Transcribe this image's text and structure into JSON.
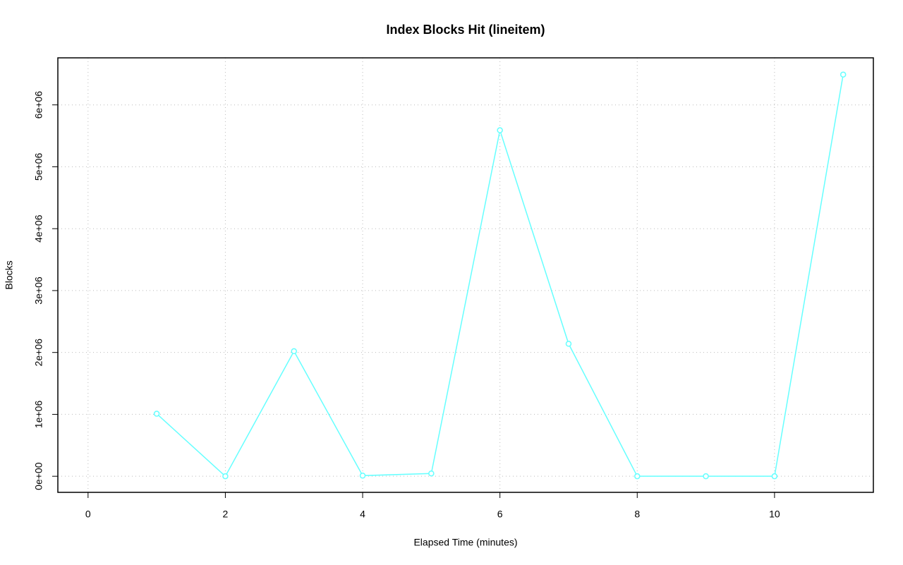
{
  "chart_data": {
    "type": "line",
    "title": "Index Blocks Hit (lineitem)",
    "xlabel": "Elapsed Time (minutes)",
    "ylabel": "Blocks",
    "x": [
      1,
      2,
      3,
      4,
      5,
      6,
      7,
      8,
      9,
      10,
      11
    ],
    "series": [
      {
        "name": "lineitem",
        "color": "#66ffff",
        "values": [
          1010000,
          0,
          2020000,
          10000,
          45000,
          5590000,
          2140000,
          0,
          0,
          0,
          6490000
        ]
      }
    ],
    "xlim": [
      -0.44,
      11.44
    ],
    "xticks": [
      0,
      2,
      4,
      6,
      8,
      10
    ],
    "ylim": [
      -260000,
      6760000
    ],
    "yticks": [
      {
        "value": 0,
        "label": "0e+00"
      },
      {
        "value": 1000000,
        "label": "1e+06"
      },
      {
        "value": 2000000,
        "label": "2e+06"
      },
      {
        "value": 3000000,
        "label": "3e+06"
      },
      {
        "value": 4000000,
        "label": "4e+06"
      },
      {
        "value": 5000000,
        "label": "5e+06"
      },
      {
        "value": 6000000,
        "label": "6e+06"
      }
    ],
    "grid": true
  }
}
